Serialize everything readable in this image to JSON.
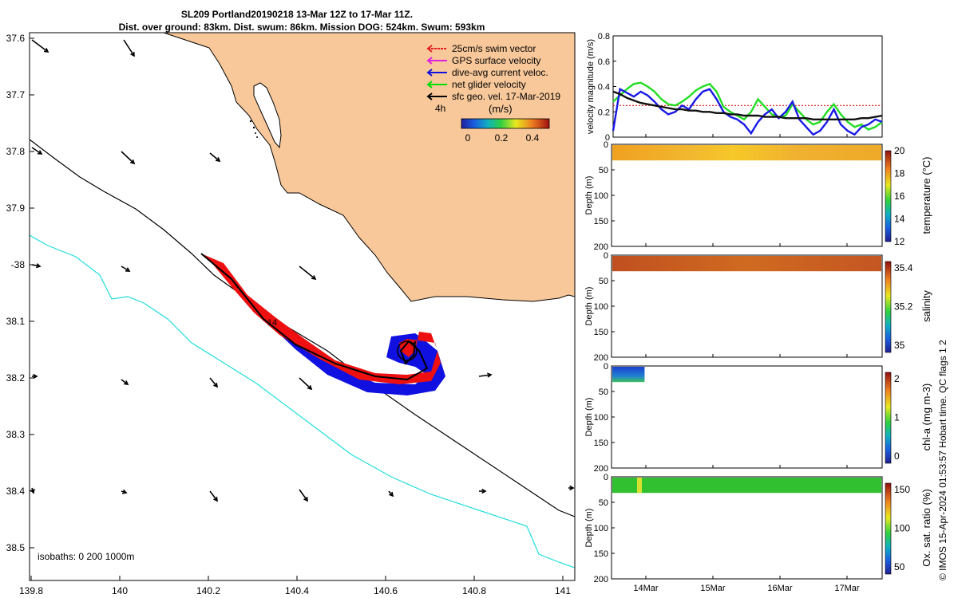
{
  "title": {
    "line1": "SL209 Portland20190218 13-Mar 12Z to 17-Mar 11Z.",
    "line2": "Dist. over ground: 83km. Dist. swum: 86km. Mission DOG: 524km. Swum: 593km"
  },
  "legend": {
    "items": [
      {
        "label": "25cm/s swim vector",
        "color": "#e41a1c"
      },
      {
        "label": "GPS surface velocity",
        "color": "#e020e0"
      },
      {
        "label": "dive-avg current veloc.",
        "color": "#1010e0"
      },
      {
        "label": "net glider velocity",
        "color": "#00dd00"
      },
      {
        "label": "sfc geo. vel. 17-Mar-2019",
        "color": "#000000"
      }
    ],
    "interval_label": "4h",
    "colorbar_unit": "(m/s)",
    "colorbar_ticks": [
      "0",
      "0.2",
      "0.4"
    ]
  },
  "map": {
    "lon_ticks": [
      "139.8",
      "140",
      "140.2",
      "140.4",
      "140.6",
      "140.8",
      "141"
    ],
    "lat_ticks": [
      "37.6",
      "37.7",
      "37.8",
      "37.9",
      "-38",
      "38.1",
      "38.2",
      "38.3",
      "38.4",
      "38.5"
    ],
    "isobath_label": "isobaths: 0   200  1000m",
    "track_label": "14",
    "land_color": "#f8c89a",
    "shelf_color": "#000000",
    "deep_isobath_color": "#22dddd"
  },
  "chart_data": [
    {
      "type": "line",
      "ylabel": "velocity magnitude (m/s)",
      "ylim": [
        0,
        0.8
      ],
      "y_ticks": [
        "0",
        "0.2",
        "0.4",
        "0.6",
        "0.8"
      ],
      "x_ticks": [
        "14Mar",
        "15Mar",
        "16Mar",
        "17Mar"
      ],
      "x": [
        0,
        0.1,
        0.2,
        0.3,
        0.4,
        0.5,
        0.6,
        0.7,
        0.8,
        0.9,
        1.0,
        1.1,
        1.2,
        1.3,
        1.4,
        1.5,
        1.6,
        1.7,
        1.8,
        1.9,
        2.0,
        2.1,
        2.2,
        2.3,
        2.4,
        2.5,
        2.6,
        2.7,
        2.8,
        2.9,
        3.0,
        3.1,
        3.2,
        3.3,
        3.4,
        3.5,
        3.6,
        3.7,
        3.8,
        3.9
      ],
      "series": [
        {
          "name": "25cm/s swim vector",
          "color": "#e41a1c",
          "dashed": true,
          "values": [
            0.25,
            0.25,
            0.25,
            0.25,
            0.25,
            0.25,
            0.25,
            0.25,
            0.25,
            0.25,
            0.25,
            0.25,
            0.25,
            0.25,
            0.25,
            0.25,
            0.25,
            0.25,
            0.25,
            0.25,
            0.25,
            0.25,
            0.25,
            0.25,
            0.25,
            0.25,
            0.25,
            0.25,
            0.25,
            0.25,
            0.25,
            0.25,
            0.25,
            0.25,
            0.25,
            0.25,
            0.25,
            0.25,
            0.25,
            0.25
          ]
        },
        {
          "name": "net glider velocity",
          "color": "#22dd22",
          "values": [
            0.28,
            0.33,
            0.38,
            0.42,
            0.43,
            0.4,
            0.36,
            0.3,
            0.26,
            0.25,
            0.28,
            0.32,
            0.37,
            0.4,
            0.42,
            0.36,
            0.24,
            0.2,
            0.17,
            0.14,
            0.2,
            0.3,
            0.24,
            0.18,
            0.16,
            0.17,
            0.26,
            0.2,
            0.14,
            0.1,
            0.12,
            0.2,
            0.26,
            0.18,
            0.12,
            0.08,
            0.1,
            0.06,
            0.08,
            0.12
          ]
        },
        {
          "name": "dive-avg current veloc.",
          "color": "#1a1ae6",
          "values": [
            0.05,
            0.38,
            0.35,
            0.32,
            0.36,
            0.33,
            0.28,
            0.22,
            0.18,
            0.2,
            0.25,
            0.22,
            0.3,
            0.36,
            0.38,
            0.3,
            0.2,
            0.16,
            0.14,
            0.1,
            0.03,
            0.12,
            0.18,
            0.22,
            0.15,
            0.2,
            0.28,
            0.14,
            0.08,
            0.02,
            0.05,
            0.12,
            0.22,
            0.1,
            0.05,
            0.02,
            0.08,
            0.1,
            0.14,
            0.12
          ]
        },
        {
          "name": "sfc geo. vel. 17-Mar-2019",
          "color": "#111111",
          "values": [
            0.36,
            0.34,
            0.31,
            0.29,
            0.27,
            0.26,
            0.25,
            0.24,
            0.23,
            0.22,
            0.22,
            0.21,
            0.21,
            0.2,
            0.2,
            0.19,
            0.19,
            0.18,
            0.18,
            0.17,
            0.17,
            0.17,
            0.16,
            0.16,
            0.16,
            0.15,
            0.15,
            0.15,
            0.15,
            0.14,
            0.14,
            0.14,
            0.14,
            0.14,
            0.14,
            0.14,
            0.15,
            0.15,
            0.16,
            0.17
          ]
        }
      ]
    },
    {
      "type": "heatmap",
      "ylabel": "Depth (m)",
      "ylim": [
        0,
        200
      ],
      "y_ticks": [
        "0",
        "50",
        "100",
        "150",
        "200"
      ],
      "colorbar_label": "temperature (°C)",
      "colorbar_ticks": [
        "12",
        "14",
        "16",
        "18",
        "20"
      ],
      "data_depth_max": 30,
      "data_time_extent": 1.0
    },
    {
      "type": "heatmap",
      "ylabel": "Depth (m)",
      "ylim": [
        0,
        200
      ],
      "y_ticks": [
        "0",
        "50",
        "100",
        "150",
        "200"
      ],
      "colorbar_label": "salinity",
      "colorbar_ticks": [
        "35",
        "35.2",
        "35.4"
      ],
      "data_depth_max": 30,
      "data_time_extent": 1.0
    },
    {
      "type": "heatmap",
      "ylabel": "Depth (m)",
      "ylim": [
        0,
        200
      ],
      "y_ticks": [
        "0",
        "50",
        "100",
        "150",
        "200"
      ],
      "colorbar_label": "chl-a (mg m-3)",
      "colorbar_ticks": [
        "0",
        "1",
        "2"
      ],
      "data_depth_max": 30,
      "data_time_extent": 0.12
    },
    {
      "type": "heatmap",
      "ylabel": "Depth (m)",
      "ylim": [
        0,
        200
      ],
      "y_ticks": [
        "0",
        "50",
        "100",
        "150",
        "200"
      ],
      "colorbar_label": "Ox. sat. ratio (%)",
      "colorbar_ticks": [
        "50",
        "100",
        "150"
      ],
      "data_depth_max": 30,
      "data_time_extent": 1.0
    }
  ],
  "footer": {
    "credit": "© IMOS 15-Apr-2024 01:53:57 Hobart time. QC flags 1  2"
  }
}
